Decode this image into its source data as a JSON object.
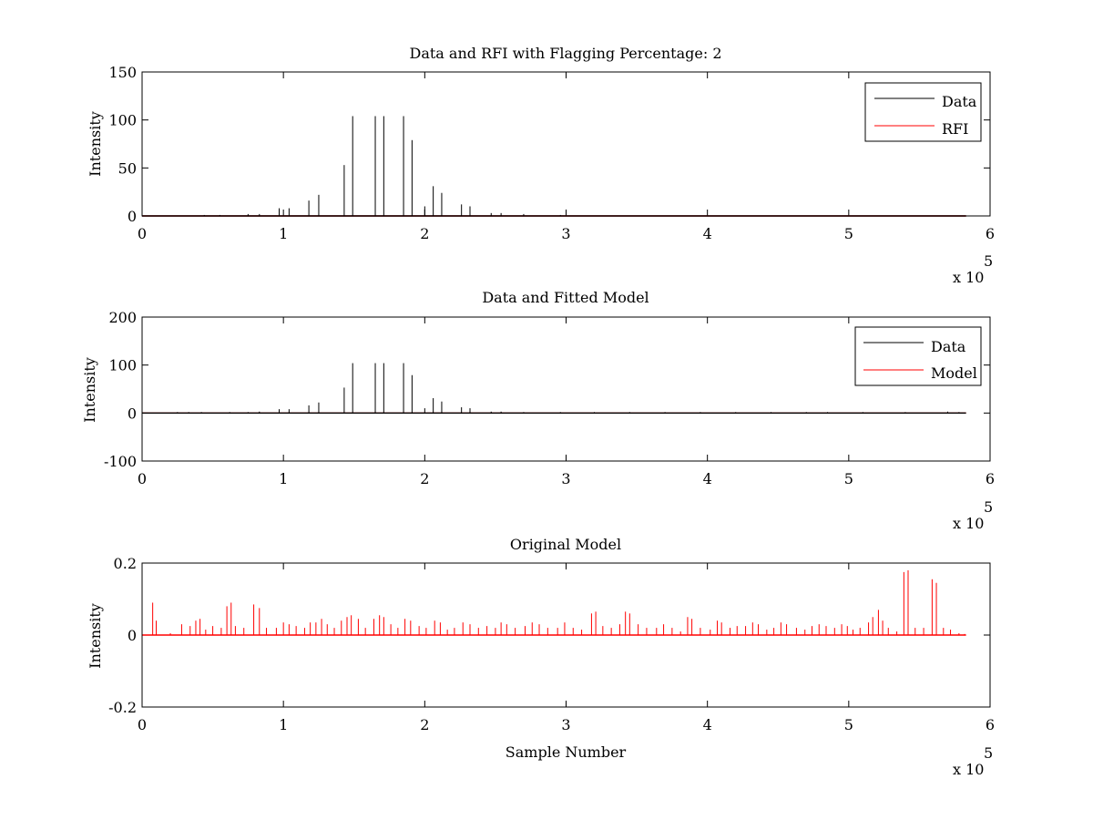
{
  "chart_data": [
    {
      "type": "line",
      "title": "Data and RFI with Flagging Percentage: 2",
      "xlabel": "",
      "ylabel": "Intensity",
      "xlim": [
        0,
        600000
      ],
      "ylim": [
        0,
        150
      ],
      "x_ticks": [
        "0",
        "1",
        "2",
        "3",
        "4",
        "5",
        "6"
      ],
      "y_ticks": [
        "0",
        "50",
        "100",
        "150"
      ],
      "x_multiplier": {
        "base": "x 10",
        "exp": "5"
      },
      "legend": {
        "position": "top-right",
        "entries": [
          "Data",
          "RFI"
        ]
      },
      "series": [
        {
          "name": "Data",
          "color": "#000000",
          "baseline": 0,
          "spikes": [
            [
              97000,
              8
            ],
            [
              104000,
              8
            ],
            [
              118000,
              16
            ],
            [
              125000,
              22
            ],
            [
              143000,
              53
            ],
            [
              149000,
              104
            ],
            [
              165000,
              104
            ],
            [
              171000,
              104
            ],
            [
              185000,
              104
            ],
            [
              191000,
              79
            ],
            [
              200000,
              10
            ],
            [
              206000,
              31
            ],
            [
              212000,
              24
            ],
            [
              226000,
              12
            ],
            [
              232000,
              10
            ],
            [
              247000,
              3
            ],
            [
              254000,
              3
            ],
            [
              270000,
              2
            ],
            [
              296000,
              1
            ],
            [
              83000,
              2
            ],
            [
              75000,
              2
            ],
            [
              55000,
              1
            ],
            [
              44000,
              1
            ]
          ]
        },
        {
          "name": "RFI",
          "color": "#ff0000",
          "baseline": 0,
          "spikes": []
        }
      ]
    },
    {
      "type": "line",
      "title": "Data and Fitted Model",
      "xlabel": "",
      "ylabel": "Intensity",
      "xlim": [
        0,
        600000
      ],
      "ylim": [
        -100,
        200
      ],
      "x_ticks": [
        "0",
        "1",
        "2",
        "3",
        "4",
        "5",
        "6"
      ],
      "y_ticks": [
        "-100",
        "0",
        "100",
        "200"
      ],
      "x_multiplier": {
        "base": "x 10",
        "exp": "5"
      },
      "legend": {
        "position": "top-right",
        "entries": [
          "Data",
          "Model"
        ]
      },
      "series": [
        {
          "name": "Data",
          "color": "#000000",
          "baseline": 0,
          "spikes": [
            [
              97000,
              8
            ],
            [
              104000,
              8
            ],
            [
              118000,
              16
            ],
            [
              125000,
              22
            ],
            [
              143000,
              53
            ],
            [
              149000,
              104
            ],
            [
              165000,
              104
            ],
            [
              171000,
              104
            ],
            [
              185000,
              104
            ],
            [
              191000,
              79
            ],
            [
              200000,
              10
            ],
            [
              206000,
              31
            ],
            [
              212000,
              24
            ],
            [
              226000,
              12
            ],
            [
              232000,
              10
            ],
            [
              247000,
              3
            ],
            [
              254000,
              3
            ],
            [
              270000,
              2
            ],
            [
              296000,
              2
            ],
            [
              25000,
              2
            ],
            [
              33000,
              2
            ],
            [
              42000,
              2
            ],
            [
              62000,
              2
            ],
            [
              83000,
              3
            ],
            [
              75000,
              2
            ],
            [
              320000,
              2
            ],
            [
              345000,
              2
            ],
            [
              370000,
              2
            ],
            [
              395000,
              2
            ],
            [
              420000,
              2
            ],
            [
              445000,
              2
            ],
            [
              470000,
              2
            ],
            [
              485000,
              2
            ],
            [
              510000,
              2
            ],
            [
              540000,
              2
            ],
            [
              570000,
              3
            ],
            [
              578000,
              2
            ]
          ]
        },
        {
          "name": "Model",
          "color": "#ff0000",
          "baseline": 0,
          "spikes": []
        }
      ]
    },
    {
      "type": "line",
      "title": "Original Model",
      "xlabel": "Sample Number",
      "ylabel": "Intensity",
      "xlim": [
        0,
        600000
      ],
      "ylim": [
        -0.2,
        0.2
      ],
      "x_ticks": [
        "0",
        "1",
        "2",
        "3",
        "4",
        "5",
        "6"
      ],
      "y_ticks": [
        "-0.2",
        "0",
        "0.2"
      ],
      "x_multiplier": {
        "base": "x 10",
        "exp": "5"
      },
      "series": [
        {
          "name": "Model",
          "color": "#ff0000",
          "baseline": 0,
          "spikes": [
            [
              7500,
              0.09
            ],
            [
              10000,
              0.04
            ],
            [
              20000,
              0.005
            ],
            [
              28000,
              0.03
            ],
            [
              34000,
              0.025
            ],
            [
              38000,
              0.04
            ],
            [
              41000,
              0.045
            ],
            [
              45000,
              0.015
            ],
            [
              50000,
              0.025
            ],
            [
              56000,
              0.02
            ],
            [
              60000,
              0.08
            ],
            [
              63000,
              0.09
            ],
            [
              66000,
              0.025
            ],
            [
              72000,
              0.02
            ],
            [
              79000,
              0.085
            ],
            [
              83000,
              0.075
            ],
            [
              88000,
              0.02
            ],
            [
              95000,
              0.02
            ],
            [
              100000,
              0.035
            ],
            [
              104000,
              0.03
            ],
            [
              109000,
              0.025
            ],
            [
              115000,
              0.02
            ],
            [
              119000,
              0.035
            ],
            [
              123000,
              0.035
            ],
            [
              127000,
              0.045
            ],
            [
              131000,
              0.03
            ],
            [
              136000,
              0.02
            ],
            [
              141000,
              0.04
            ],
            [
              145000,
              0.05
            ],
            [
              148000,
              0.055
            ],
            [
              153000,
              0.045
            ],
            [
              158000,
              0.02
            ],
            [
              164000,
              0.045
            ],
            [
              168000,
              0.055
            ],
            [
              171000,
              0.05
            ],
            [
              176000,
              0.03
            ],
            [
              181000,
              0.02
            ],
            [
              186000,
              0.045
            ],
            [
              190000,
              0.04
            ],
            [
              196000,
              0.025
            ],
            [
              201000,
              0.02
            ],
            [
              207000,
              0.04
            ],
            [
              211000,
              0.035
            ],
            [
              216000,
              0.015
            ],
            [
              221000,
              0.02
            ],
            [
              227000,
              0.035
            ],
            [
              232000,
              0.03
            ],
            [
              238000,
              0.02
            ],
            [
              244000,
              0.025
            ],
            [
              250000,
              0.02
            ],
            [
              254000,
              0.035
            ],
            [
              258000,
              0.03
            ],
            [
              264000,
              0.02
            ],
            [
              271000,
              0.025
            ],
            [
              276000,
              0.035
            ],
            [
              281000,
              0.03
            ],
            [
              287000,
              0.02
            ],
            [
              294000,
              0.02
            ],
            [
              299000,
              0.035
            ],
            [
              305000,
              0.02
            ],
            [
              311000,
              0.015
            ],
            [
              318000,
              0.06
            ],
            [
              321000,
              0.065
            ],
            [
              326000,
              0.025
            ],
            [
              332000,
              0.02
            ],
            [
              338000,
              0.03
            ],
            [
              342000,
              0.065
            ],
            [
              345000,
              0.06
            ],
            [
              351000,
              0.03
            ],
            [
              357000,
              0.02
            ],
            [
              364000,
              0.02
            ],
            [
              369000,
              0.03
            ],
            [
              375000,
              0.02
            ],
            [
              381000,
              0.01
            ],
            [
              386000,
              0.05
            ],
            [
              389000,
              0.045
            ],
            [
              395000,
              0.02
            ],
            [
              402000,
              0.015
            ],
            [
              407000,
              0.04
            ],
            [
              410000,
              0.035
            ],
            [
              416000,
              0.02
            ],
            [
              421000,
              0.025
            ],
            [
              427000,
              0.025
            ],
            [
              432000,
              0.035
            ],
            [
              436000,
              0.03
            ],
            [
              442000,
              0.015
            ],
            [
              447000,
              0.02
            ],
            [
              452000,
              0.035
            ],
            [
              456000,
              0.03
            ],
            [
              463000,
              0.02
            ],
            [
              469000,
              0.015
            ],
            [
              474000,
              0.025
            ],
            [
              479000,
              0.03
            ],
            [
              484000,
              0.025
            ],
            [
              490000,
              0.02
            ],
            [
              495000,
              0.03
            ],
            [
              499000,
              0.025
            ],
            [
              503000,
              0.015
            ],
            [
              508000,
              0.02
            ],
            [
              514000,
              0.035
            ],
            [
              517000,
              0.05
            ],
            [
              521000,
              0.07
            ],
            [
              524000,
              0.04
            ],
            [
              528000,
              0.02
            ],
            [
              534000,
              0.01
            ],
            [
              539000,
              0.175
            ],
            [
              542000,
              0.18
            ],
            [
              547000,
              0.02
            ],
            [
              553000,
              0.02
            ],
            [
              559000,
              0.155
            ],
            [
              562000,
              0.145
            ],
            [
              567000,
              0.02
            ],
            [
              572000,
              0.015
            ],
            [
              578000,
              0.005
            ],
            [
              582000,
              0.003
            ]
          ]
        }
      ]
    }
  ]
}
